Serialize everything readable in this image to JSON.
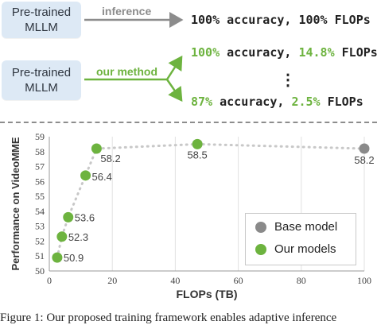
{
  "top": {
    "box1": "Pre-trained\nMLLM",
    "box2": "Pre-trained\nMLLM",
    "arrow1_label": "inference",
    "arrow2_label": "our method",
    "line1": "100% accuracy, 100% FLOPs",
    "line2_acc": "100%",
    "line2_mid": " accuracy, ",
    "line2_flops": "14.8%",
    "line2_end": " FLOPs",
    "ellipsis": "⋮",
    "line3_acc": "87%",
    "line3_mid": " accuracy, ",
    "line3_flops": "2.5%",
    "line3_end": " FLOPs"
  },
  "colors": {
    "green": "#6db33f",
    "gray": "#8c8c8c",
    "box_bg": "#dde9f5",
    "base_dot": "#8a8a8a",
    "trend": "#c8c8c8"
  },
  "chart_data": {
    "type": "scatter",
    "xlabel": "FLOPs (TB)",
    "ylabel": "Performance on VideoMME",
    "xlim": [
      0,
      100
    ],
    "ylim": [
      50,
      59
    ],
    "xticks": [
      0,
      20,
      40,
      60,
      80,
      100
    ],
    "yticks": [
      50,
      51,
      52,
      53,
      54,
      55,
      56,
      57,
      58,
      59
    ],
    "grid": "vertical",
    "legend_position": "bottom-right",
    "series": [
      {
        "name": "Base model",
        "color": "#8a8a8a",
        "points": [
          {
            "x": 100,
            "y": 58.2,
            "label": "58.2"
          }
        ]
      },
      {
        "name": "Our models",
        "color": "#6db33f",
        "points": [
          {
            "x": 2.5,
            "y": 50.9,
            "label": "50.9"
          },
          {
            "x": 4,
            "y": 52.3,
            "label": "52.3"
          },
          {
            "x": 6,
            "y": 53.6,
            "label": "53.6"
          },
          {
            "x": 11.5,
            "y": 56.4,
            "label": "56.4"
          },
          {
            "x": 15,
            "y": 58.2,
            "label": "58.2"
          },
          {
            "x": 47,
            "y": 58.5,
            "label": "58.5"
          }
        ]
      }
    ]
  },
  "caption": "Figure 1: Our proposed training framework enables adaptive inference"
}
